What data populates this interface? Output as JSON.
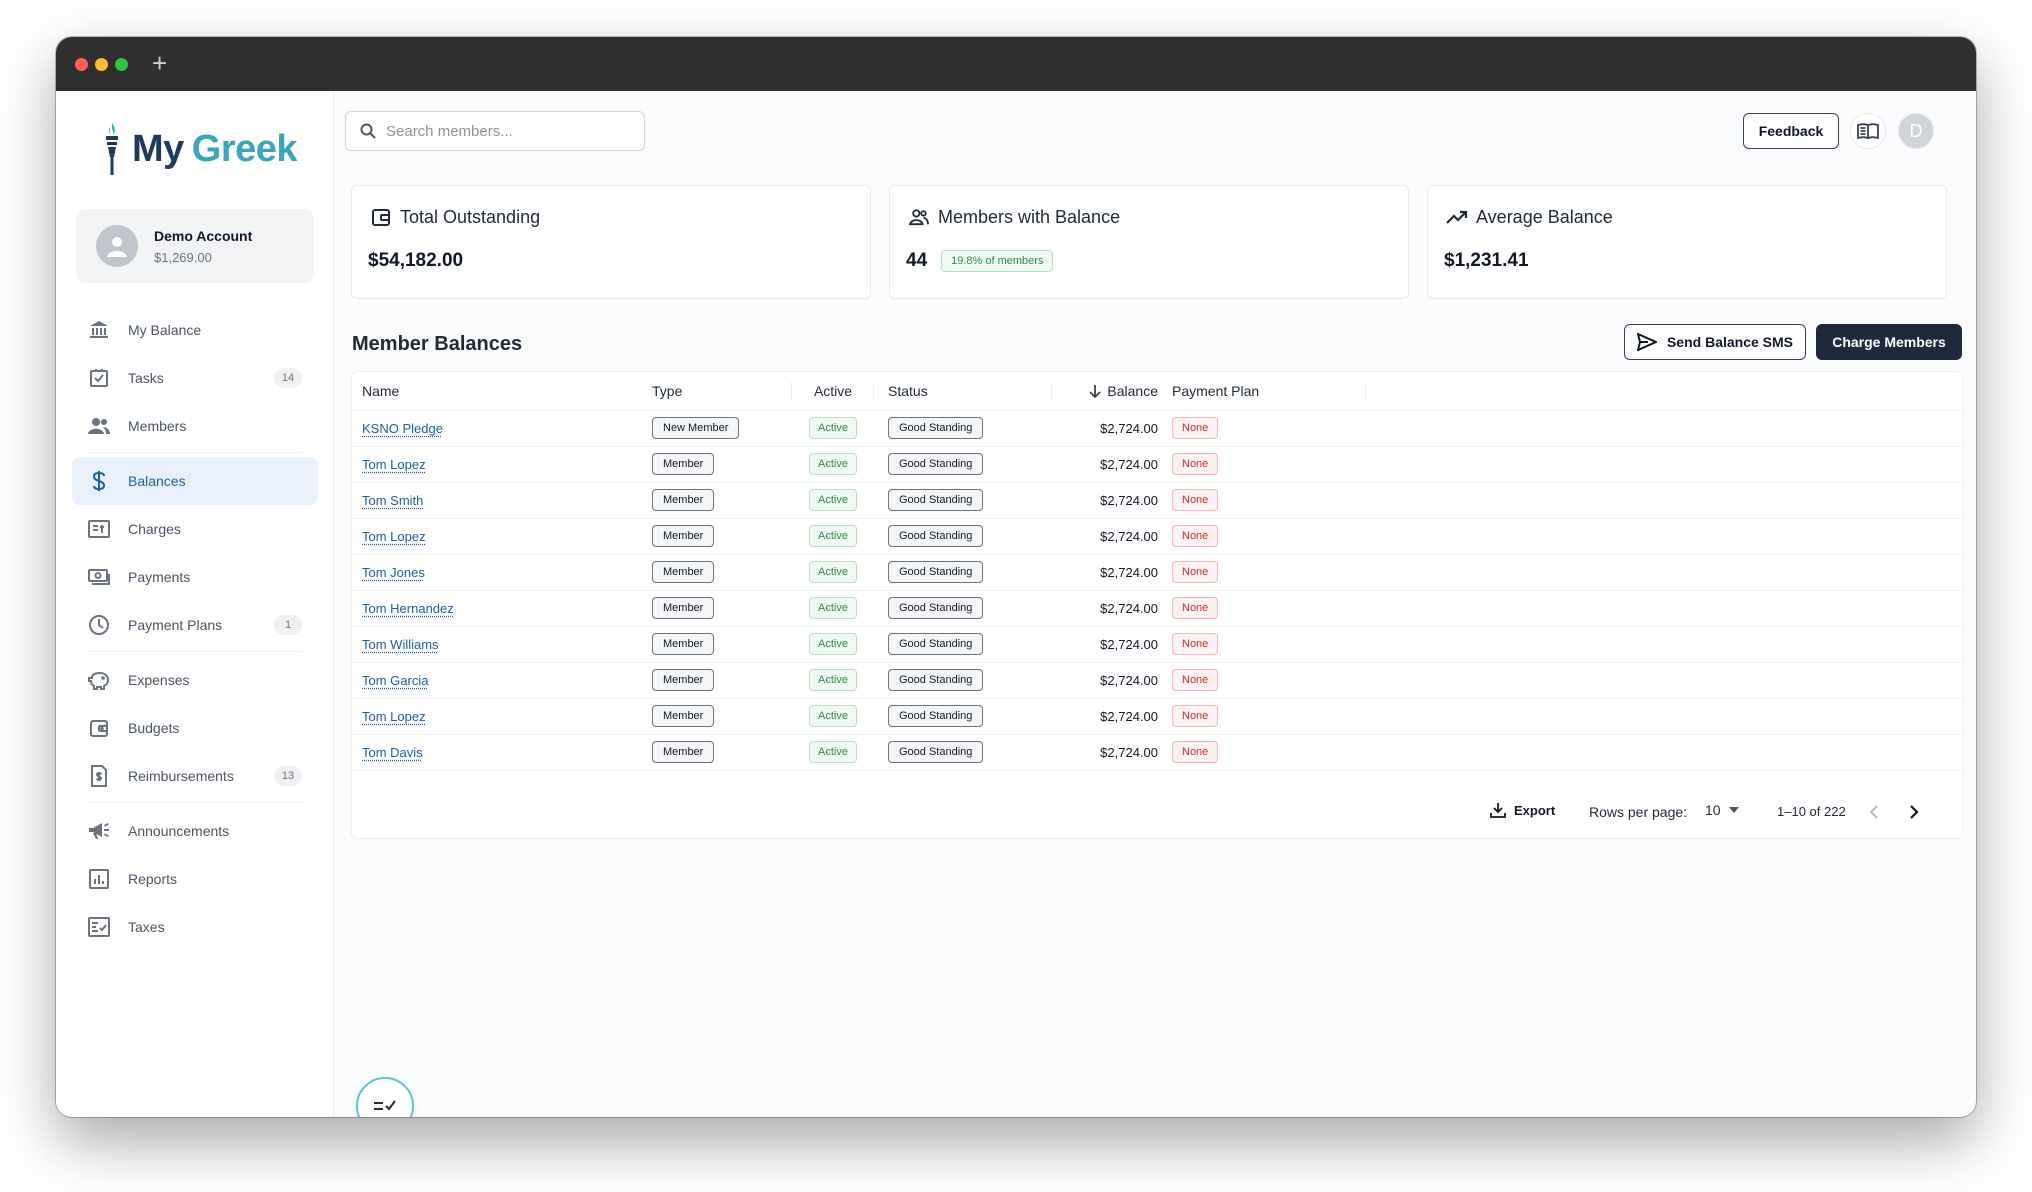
{
  "app": {
    "brand_my": "My",
    "brand_greek": "Greek",
    "brand_colors": {
      "navy": "#1f3a5a",
      "teal": "#3aa6b9"
    }
  },
  "account": {
    "name": "Demo Account",
    "balance": "$1,269.00"
  },
  "sidebar": {
    "items": [
      {
        "label": "My Balance",
        "icon": "bank-icon"
      },
      {
        "label": "Tasks",
        "icon": "checkbox-icon",
        "count": "14"
      },
      {
        "label": "Members",
        "icon": "people-icon"
      },
      {
        "label": "Balances",
        "icon": "dollar-icon",
        "active": true
      },
      {
        "label": "Charges",
        "icon": "invoice-icon"
      },
      {
        "label": "Payments",
        "icon": "cash-icon"
      },
      {
        "label": "Payment Plans",
        "icon": "clock-icon",
        "count": "1"
      },
      {
        "label": "Expenses",
        "icon": "piggy-bank-icon"
      },
      {
        "label": "Budgets",
        "icon": "wallet-icon"
      },
      {
        "label": "Reimbursements",
        "icon": "receipt-icon",
        "count": "13"
      },
      {
        "label": "Announcements",
        "icon": "megaphone-icon"
      },
      {
        "label": "Reports",
        "icon": "chart-icon"
      },
      {
        "label": "Taxes",
        "icon": "tax-form-icon"
      }
    ]
  },
  "header": {
    "search_placeholder": "Search members...",
    "feedback_label": "Feedback",
    "user_initial": "D"
  },
  "stats": {
    "total_outstanding": {
      "title": "Total Outstanding",
      "value": "$54,182.00"
    },
    "members_with_balance": {
      "title": "Members with Balance",
      "value": "44",
      "badge": "19.8% of members"
    },
    "average_balance": {
      "title": "Average Balance",
      "value": "$1,231.41"
    }
  },
  "balances": {
    "title": "Member Balances",
    "send_sms_label": "Send Balance SMS",
    "charge_label": "Charge Members",
    "columns": {
      "name": "Name",
      "type": "Type",
      "active": "Active",
      "status": "Status",
      "balance": "Balance",
      "plan": "Payment Plan"
    },
    "rows": [
      {
        "name": "KSNO Pledge",
        "type": "New Member",
        "active": "Active",
        "status": "Good Standing",
        "balance": "$2,724.00",
        "plan": "None"
      },
      {
        "name": "Tom Lopez",
        "type": "Member",
        "active": "Active",
        "status": "Good Standing",
        "balance": "$2,724.00",
        "plan": "None"
      },
      {
        "name": "Tom Smith",
        "type": "Member",
        "active": "Active",
        "status": "Good Standing",
        "balance": "$2,724.00",
        "plan": "None"
      },
      {
        "name": "Tom Lopez",
        "type": "Member",
        "active": "Active",
        "status": "Good Standing",
        "balance": "$2,724.00",
        "plan": "None"
      },
      {
        "name": "Tom Jones",
        "type": "Member",
        "active": "Active",
        "status": "Good Standing",
        "balance": "$2,724.00",
        "plan": "None"
      },
      {
        "name": "Tom Hernandez",
        "type": "Member",
        "active": "Active",
        "status": "Good Standing",
        "balance": "$2,724.00",
        "plan": "None"
      },
      {
        "name": "Tom Williams",
        "type": "Member",
        "active": "Active",
        "status": "Good Standing",
        "balance": "$2,724.00",
        "plan": "None"
      },
      {
        "name": "Tom Garcia",
        "type": "Member",
        "active": "Active",
        "status": "Good Standing",
        "balance": "$2,724.00",
        "plan": "None"
      },
      {
        "name": "Tom Lopez",
        "type": "Member",
        "active": "Active",
        "status": "Good Standing",
        "balance": "$2,724.00",
        "plan": "None"
      },
      {
        "name": "Tom Davis",
        "type": "Member",
        "active": "Active",
        "status": "Good Standing",
        "balance": "$2,724.00",
        "plan": "None"
      }
    ],
    "footer": {
      "export_label": "Export",
      "rows_per_page_label": "Rows per page:",
      "rows_per_page": "10",
      "range": "1–10 of 222"
    }
  }
}
